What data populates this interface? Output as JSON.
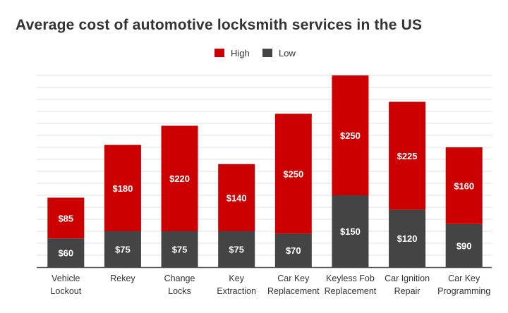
{
  "chart_data": {
    "type": "bar",
    "stacked": true,
    "title": "Average cost of automotive locksmith services in the US",
    "categories": [
      [
        "Vehicle",
        "Lockout"
      ],
      [
        "Rekey"
      ],
      [
        "Change",
        "Locks"
      ],
      [
        "Key",
        "Extraction"
      ],
      [
        "Car Key",
        "Replacement"
      ],
      [
        "Keyless Fob",
        "Replacement"
      ],
      [
        "Car Ignition",
        "Repair"
      ],
      [
        "Car Key",
        "Programming"
      ]
    ],
    "series": [
      {
        "name": "Low",
        "color": "#444444",
        "values": [
          60,
          75,
          75,
          75,
          70,
          150,
          120,
          90
        ],
        "labels": [
          "$60",
          "$75",
          "$75",
          "$75",
          "$70",
          "$150",
          "$120",
          "$90"
        ]
      },
      {
        "name": "High",
        "color": "#cc0000",
        "values": [
          85,
          180,
          220,
          140,
          250,
          250,
          225,
          160
        ],
        "labels": [
          "$85",
          "$180",
          "$220",
          "$140",
          "$250",
          "$250",
          "$225",
          "$160"
        ]
      }
    ],
    "legend_order": [
      "High",
      "Low"
    ],
    "legend_position": "top",
    "ylim": [
      0,
      400
    ],
    "grid": true,
    "xlabel": "",
    "ylabel": ""
  }
}
